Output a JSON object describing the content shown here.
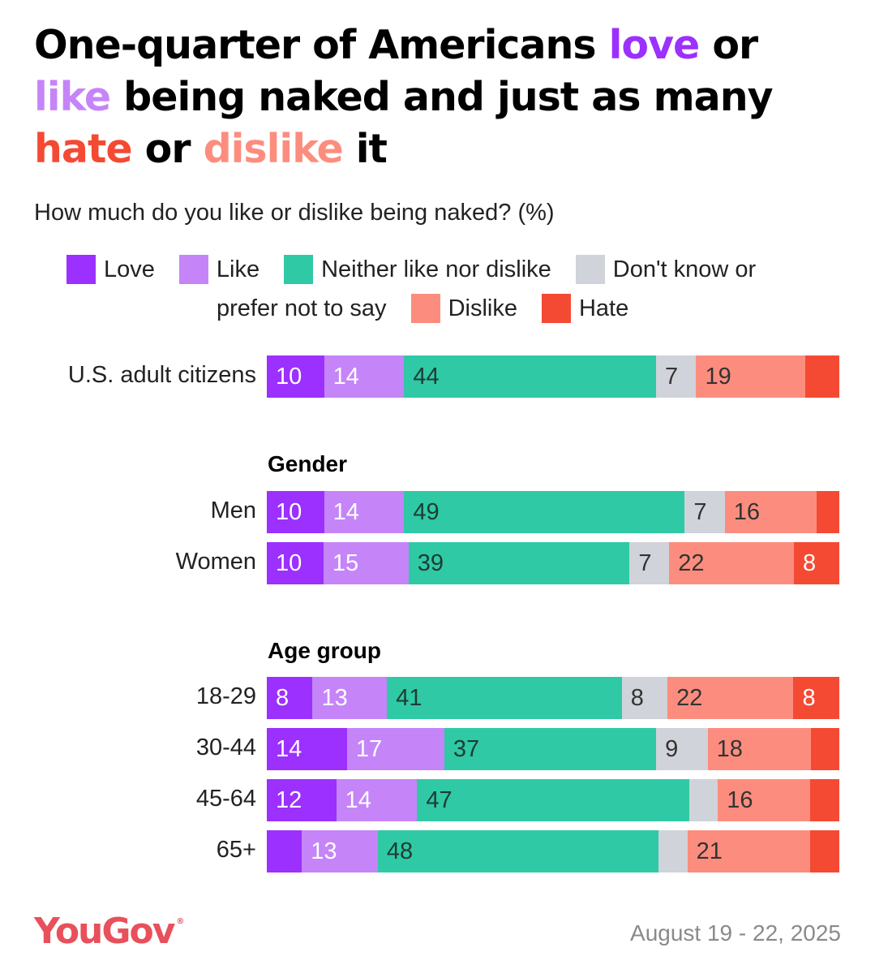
{
  "headline": {
    "parts": [
      {
        "text": "One-quarter of Americans ",
        "color": "#000000"
      },
      {
        "text": "love",
        "color": "#9b30ff"
      },
      {
        "text": " or ",
        "color": "#000000"
      },
      {
        "text": "like",
        "color": "#c584f8"
      },
      {
        "text": " being naked and just as many ",
        "color": "#000000"
      },
      {
        "text": "hate",
        "color": "#f44a33"
      },
      {
        "text": " or ",
        "color": "#000000"
      },
      {
        "text": "dislike",
        "color": "#fc8d7e"
      },
      {
        "text": " it",
        "color": "#000000"
      }
    ]
  },
  "subtitle": "How much do you like or dislike being naked? (%)",
  "legend": {
    "row1": [
      {
        "label": "Love",
        "color": "#9b30ff"
      },
      {
        "label": "Like",
        "color": "#c584f8"
      },
      {
        "label": "Neither like nor dislike",
        "color": "#2fc9a5"
      },
      {
        "label": "Don't know or",
        "color": "#d0d3d9"
      }
    ],
    "row2": [
      {
        "label": "prefer not to say",
        "color": null
      },
      {
        "label": "Dislike",
        "color": "#fc8d7e"
      },
      {
        "label": "Hate",
        "color": "#f44a33"
      }
    ]
  },
  "chart_data": {
    "type": "bar",
    "stacked": true,
    "orientation": "horizontal",
    "series_names": [
      "Love",
      "Like",
      "Neither like nor dislike",
      "Don't know or prefer not to say",
      "Dislike",
      "Hate"
    ],
    "colors": [
      "#9b30ff",
      "#c584f8",
      "#2fc9a5",
      "#d0d3d9",
      "#fc8d7e",
      "#f44a33"
    ],
    "label_colors": [
      "#ffffff",
      "#ffffff",
      "#1f3b33",
      "#333333",
      "#333333",
      "#ffffff"
    ],
    "groups": [
      {
        "title": "",
        "rows": [
          {
            "label": "U.S. adult citizens",
            "values": [
              10,
              14,
              44,
              7,
              19,
              6
            ],
            "labels": [
              "10",
              "14",
              "44",
              "7",
              "19",
              ""
            ]
          }
        ]
      },
      {
        "title": "Gender",
        "rows": [
          {
            "label": "Men",
            "values": [
              10,
              14,
              49,
              7,
              16,
              4
            ],
            "labels": [
              "10",
              "14",
              "49",
              "7",
              "16",
              ""
            ]
          },
          {
            "label": "Women",
            "values": [
              10,
              15,
              39,
              7,
              22,
              8
            ],
            "labels": [
              "10",
              "15",
              "39",
              "7",
              "22",
              "8"
            ]
          }
        ]
      },
      {
        "title": "Age group",
        "rows": [
          {
            "label": "18-29",
            "values": [
              8,
              13,
              41,
              8,
              22,
              8
            ],
            "labels": [
              "8",
              "13",
              "41",
              "8",
              "22",
              "8"
            ]
          },
          {
            "label": "30-44",
            "values": [
              14,
              17,
              37,
              9,
              18,
              5
            ],
            "labels": [
              "14",
              "17",
              "37",
              "9",
              "18",
              ""
            ]
          },
          {
            "label": "45-64",
            "values": [
              12,
              14,
              47,
              5,
              16,
              5
            ],
            "labels": [
              "12",
              "14",
              "47",
              "",
              "16",
              ""
            ]
          },
          {
            "label": "65+",
            "values": [
              6,
              13,
              48,
              5,
              21,
              5
            ],
            "labels": [
              "",
              "13",
              "48",
              "",
              "21",
              ""
            ]
          }
        ]
      }
    ]
  },
  "footer": {
    "logo_text": "YouGov",
    "logo_mark": "®",
    "date": "August 19 - 22, 2025"
  }
}
